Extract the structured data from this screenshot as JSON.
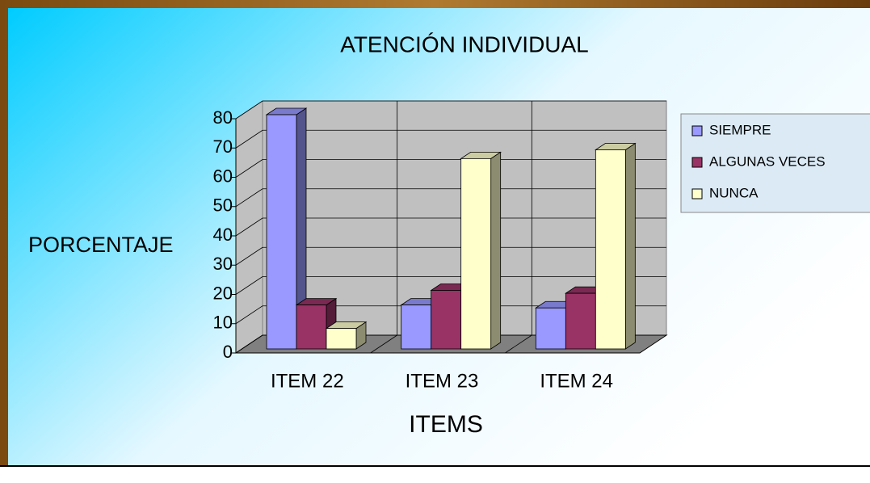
{
  "chart_data": {
    "type": "bar3d",
    "title": "ATENCIÓN INDIVIDUAL",
    "x_label": "ITEMS",
    "y_label": "PORCENTAJE",
    "categories": [
      "ITEM 22",
      "ITEM 23",
      "ITEM 24"
    ],
    "series": [
      {
        "name": "SIEMPRE",
        "color": "#9999ff",
        "values": [
          80,
          15,
          14
        ]
      },
      {
        "name": "ALGUNAS VECES",
        "color": "#993366",
        "values": [
          15,
          20,
          19
        ]
      },
      {
        "name": "NUNCA",
        "color": "#ffffcc",
        "values": [
          7,
          65,
          68
        ]
      }
    ],
    "ylim": [
      0,
      80
    ],
    "yticks": [
      0,
      10,
      20,
      30,
      40,
      50,
      60,
      70,
      80
    ],
    "grid": true,
    "legend": "right"
  }
}
